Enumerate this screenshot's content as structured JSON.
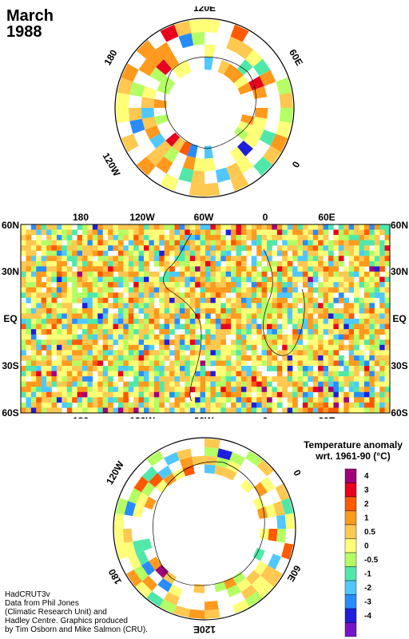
{
  "title": {
    "month": "March",
    "year": "1988"
  },
  "north_polar": {
    "lon_labels": [
      "120E",
      "60E",
      "0",
      "120W",
      "180"
    ]
  },
  "south_polar": {
    "lon_labels": [
      "120E",
      "60E",
      "0",
      "120W",
      "180"
    ]
  },
  "world_map": {
    "lat_labels": [
      "60N",
      "30N",
      "EQ",
      "30S",
      "60S"
    ],
    "lon_labels": [
      "180",
      "120W",
      "60W",
      "0",
      "60E"
    ]
  },
  "legend": {
    "title_line1": "Temperature anomaly",
    "title_line2": "wrt. 1961-90  (°C)",
    "bins": [
      {
        "label": "4",
        "color": "#a0007a"
      },
      {
        "label": "3",
        "color": "#e8001e"
      },
      {
        "label": "2",
        "color": "#ff5a00"
      },
      {
        "label": "1",
        "color": "#ff9a1e"
      },
      {
        "label": "0.5",
        "color": "#ffc850"
      },
      {
        "label": "0",
        "color": "#ffff78"
      },
      {
        "label": "-0.5",
        "color": "#b4ff64"
      },
      {
        "label": "-1",
        "color": "#50e8aa"
      },
      {
        "label": "-2",
        "color": "#50c8ff"
      },
      {
        "label": "-3",
        "color": "#288cff"
      },
      {
        "label": "-4",
        "color": "#1e1edc"
      },
      {
        "label": "",
        "color": "#7814c8"
      }
    ]
  },
  "credits": {
    "line1": "HadCRUT3v",
    "line2": "Data from Phil Jones",
    "line3": "(Climatic Research Unit) and",
    "line4": "Hadley Centre.  Graphics produced",
    "line5": "by Tim Osborn and Mike Salmon (CRU)."
  }
}
